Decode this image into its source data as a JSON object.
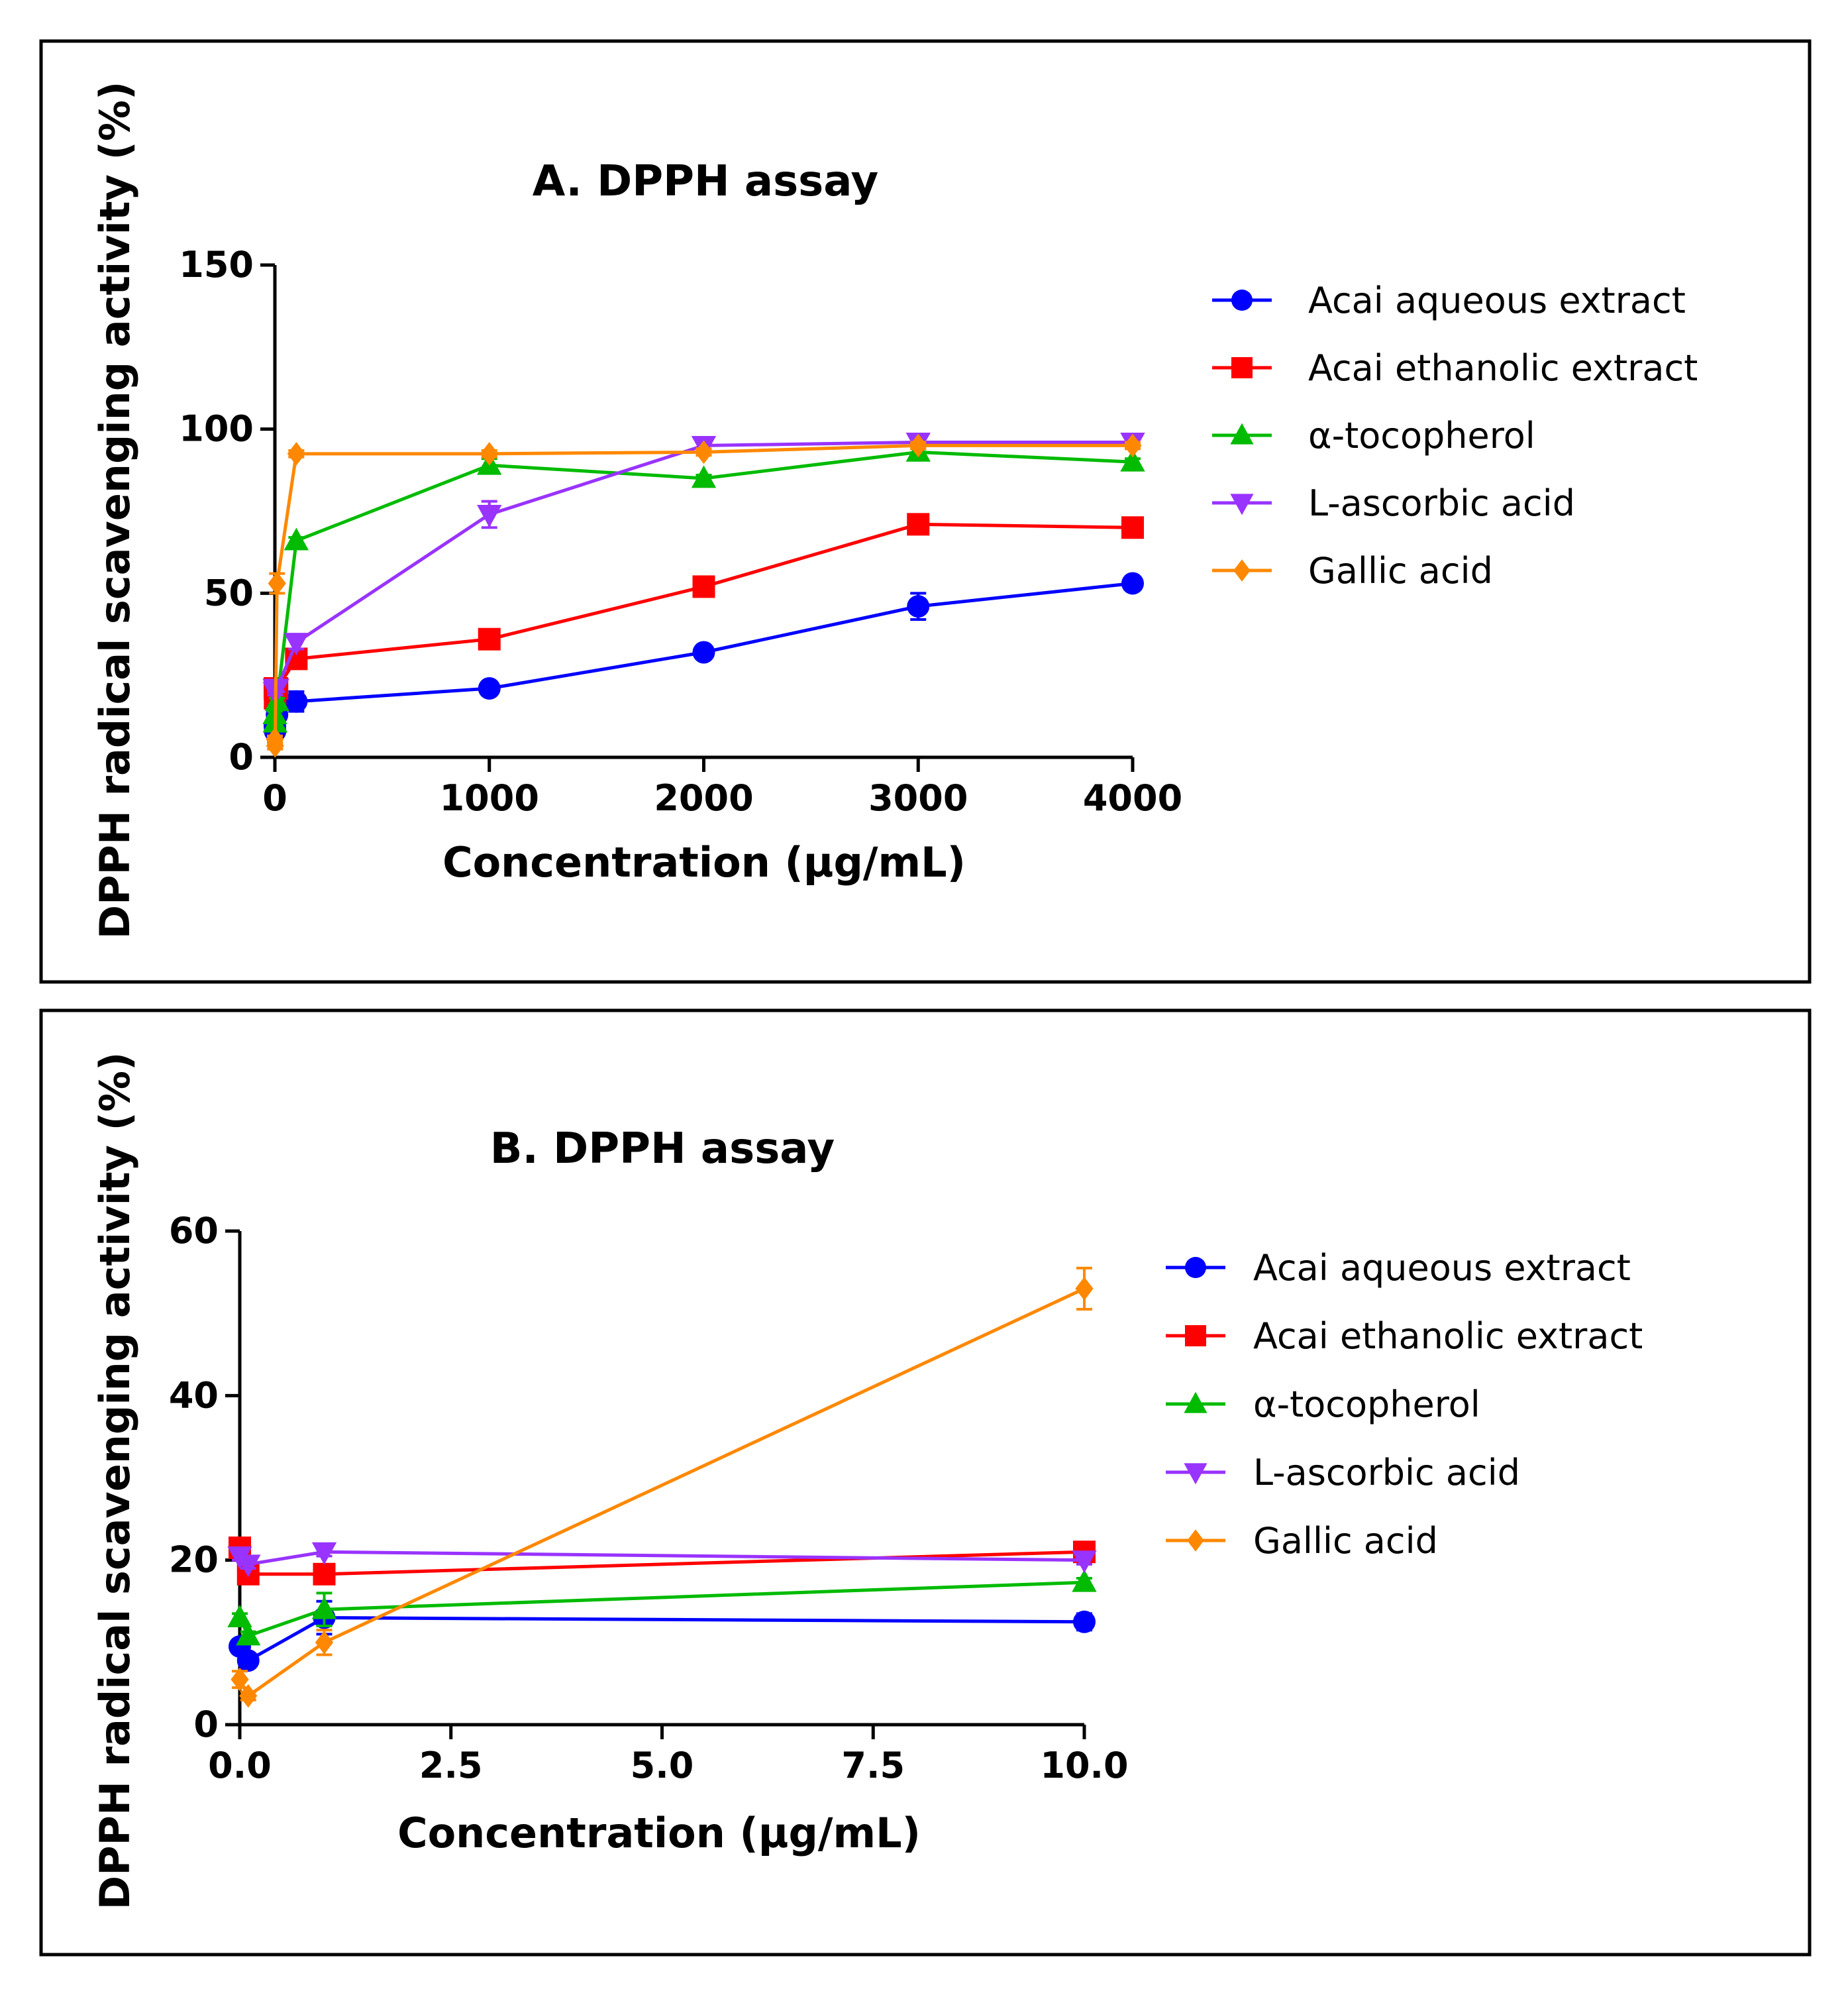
{
  "chart_data": [
    {
      "type": "line",
      "title": "A. DPPH assay",
      "xlabel": "Concentration (µg/mL)",
      "ylabel": "DPPH radical scavenging activity (%)",
      "xlim": [
        0,
        4000
      ],
      "ylim": [
        0,
        150
      ],
      "xticks": [
        0,
        1000,
        2000,
        3000,
        4000
      ],
      "yticks": [
        0,
        50,
        100,
        150
      ],
      "series": [
        {
          "name": "Acai aqueous extract",
          "color": "#0000ff",
          "marker": "circle",
          "x": [
            0,
            1,
            10,
            100,
            1000,
            2000,
            3000,
            4000
          ],
          "y": [
            9.5,
            8,
            13,
            17,
            21,
            32,
            46,
            53
          ],
          "err": [
            1,
            1,
            2,
            3,
            1,
            1,
            4,
            1
          ]
        },
        {
          "name": "Acai ethanolic extract",
          "color": "#ff0000",
          "marker": "square",
          "x": [
            0,
            1,
            10,
            100,
            1000,
            2000,
            3000,
            4000
          ],
          "y": [
            21,
            18,
            21,
            30,
            36,
            52,
            71,
            70
          ],
          "err": [
            1,
            1,
            1,
            2,
            1,
            1,
            3,
            1
          ]
        },
        {
          "name": "α-tocopherol",
          "color": "#00bb00",
          "marker": "triangle-up",
          "x": [
            0,
            1,
            10,
            100,
            1000,
            2000,
            3000,
            4000
          ],
          "y": [
            13,
            10.5,
            17,
            66,
            89,
            85,
            93,
            90
          ],
          "err": [
            1,
            1,
            1,
            1,
            2,
            1,
            1,
            1
          ]
        },
        {
          "name": "L-ascorbic acid",
          "color": "#9933ff",
          "marker": "triangle-down",
          "x": [
            0,
            1,
            10,
            100,
            1000,
            2000,
            3000,
            4000
          ],
          "y": [
            21,
            20,
            21,
            35,
            74,
            95,
            96,
            96
          ],
          "err": [
            1,
            1,
            1,
            2,
            4,
            1,
            1,
            1
          ]
        },
        {
          "name": "Gallic acid",
          "color": "#ff8800",
          "marker": "diamond",
          "x": [
            0,
            1,
            10,
            100,
            1000,
            2000,
            3000,
            4000
          ],
          "y": [
            5.5,
            3.5,
            53,
            92.5,
            92.5,
            93,
            95,
            95
          ],
          "err": [
            1,
            1,
            3,
            1,
            1,
            1,
            1,
            1
          ]
        }
      ]
    },
    {
      "type": "line",
      "title": "B. DPPH assay",
      "xlabel": "Concentration (µg/mL)",
      "ylabel": "DPPH radical scavenging activity (%)",
      "xlim": [
        0,
        10
      ],
      "ylim": [
        0,
        60
      ],
      "xticks": [
        0,
        2.5,
        5,
        7.5,
        10
      ],
      "xtick_labels": [
        "0.0",
        "2.5",
        "5.0",
        "7.5",
        "10.0"
      ],
      "yticks": [
        0,
        20,
        40,
        60
      ],
      "series": [
        {
          "name": "Acai aqueous extract",
          "color": "#0000ff",
          "marker": "circle",
          "x": [
            0,
            0.1,
            1,
            10
          ],
          "y": [
            9.5,
            7.8,
            13,
            12.5
          ],
          "err": [
            0.5,
            0.5,
            2,
            1
          ]
        },
        {
          "name": "Acai ethanolic extract",
          "color": "#ff0000",
          "marker": "square",
          "x": [
            0,
            0.1,
            1,
            10
          ],
          "y": [
            21.5,
            18.3,
            18.3,
            21
          ],
          "err": [
            1,
            0.5,
            0.5,
            1
          ]
        },
        {
          "name": "α-tocopherol",
          "color": "#00bb00",
          "marker": "triangle-up",
          "x": [
            0,
            0.1,
            1,
            10
          ],
          "y": [
            13,
            10.8,
            14,
            17.3
          ],
          "err": [
            0.5,
            0.5,
            2,
            0.5
          ]
        },
        {
          "name": "L-ascorbic acid",
          "color": "#9933ff",
          "marker": "triangle-down",
          "x": [
            0,
            0.1,
            1,
            10
          ],
          "y": [
            20.5,
            19.5,
            21,
            20
          ],
          "err": [
            0.5,
            0.5,
            0.5,
            0.5
          ]
        },
        {
          "name": "Gallic acid",
          "color": "#ff8800",
          "marker": "diamond",
          "x": [
            0,
            0.1,
            1,
            10
          ],
          "y": [
            5.5,
            3.5,
            10,
            53
          ],
          "err": [
            1,
            0.5,
            1.5,
            2.5
          ]
        }
      ]
    }
  ]
}
